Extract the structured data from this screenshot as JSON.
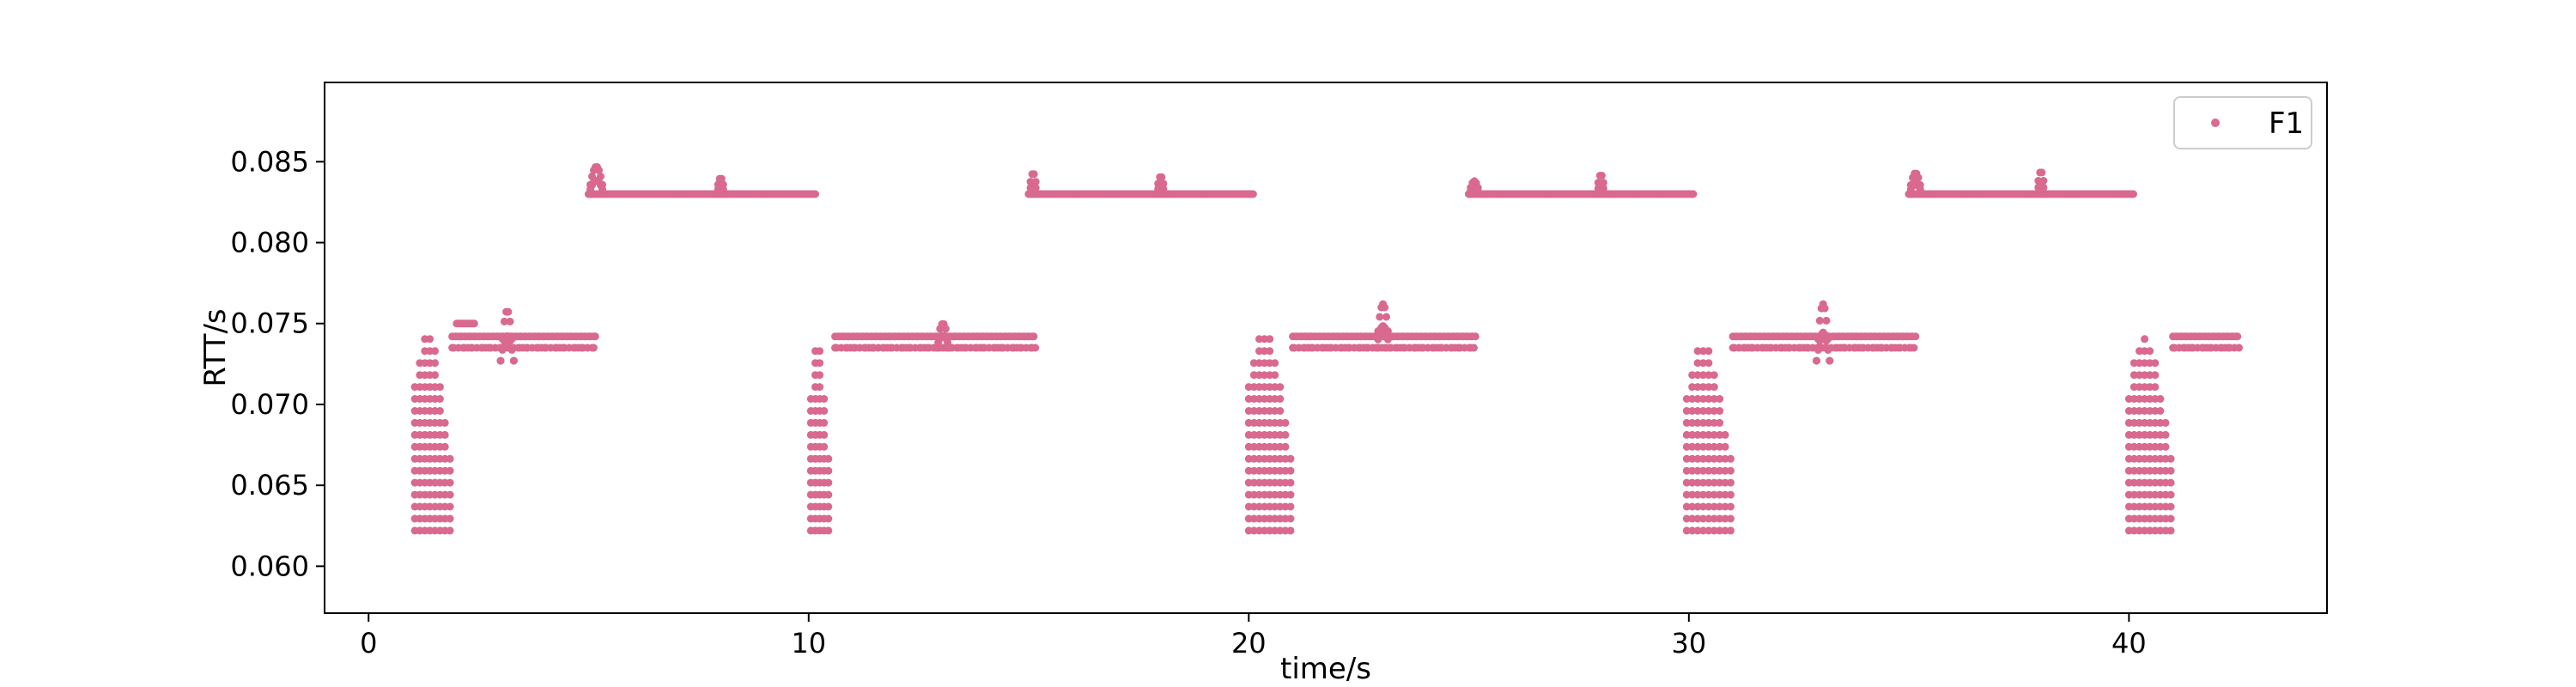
{
  "chart_data": {
    "type": "scatter",
    "title": "",
    "xlabel": "time/s",
    "ylabel": "RTT/s",
    "xlim": [
      -1,
      44.5
    ],
    "ylim": [
      0.0571,
      0.0899
    ],
    "xticks": [
      0,
      10,
      20,
      30,
      40
    ],
    "xtick_labels": [
      "0",
      "10",
      "20",
      "30",
      "40"
    ],
    "yticks": [
      0.06,
      0.065,
      0.07,
      0.075,
      0.08,
      0.085
    ],
    "ytick_labels": [
      "0.060",
      "0.065",
      "0.070",
      "0.075",
      "0.080",
      "0.085"
    ],
    "grid": false,
    "legend_position": "top-right",
    "marker_color": "#d9698f",
    "series": [
      {
        "name": "F1",
        "color": "#d9698f",
        "segments": [
          {
            "x_start": 1.05,
            "x_end": 1.85,
            "kind": "ramp",
            "y_low": 0.0622,
            "y_high": 0.0745
          },
          {
            "x_start": 1.9,
            "x_end": 5.15,
            "kind": "flat",
            "y_low": 0.0735,
            "y_high": 0.0742
          },
          {
            "x_start": 2.0,
            "x_end": 2.4,
            "kind": "flat",
            "y_low": 0.075,
            "y_high": 0.075
          },
          {
            "x_start": 3.0,
            "x_end": 3.3,
            "kind": "bump",
            "y_low": 0.0727,
            "y_high": 0.0758
          },
          {
            "x_start": 5.0,
            "x_end": 10.15,
            "kind": "flat",
            "y_low": 0.083,
            "y_high": 0.083
          },
          {
            "x_start": 5.0,
            "x_end": 5.35,
            "kind": "bump",
            "y_low": 0.083,
            "y_high": 0.0847
          },
          {
            "x_start": 7.9,
            "x_end": 8.1,
            "kind": "bump",
            "y_low": 0.083,
            "y_high": 0.084
          },
          {
            "x_start": 10.05,
            "x_end": 10.45,
            "kind": "ramp",
            "y_low": 0.0622,
            "y_high": 0.0742
          },
          {
            "x_start": 10.6,
            "x_end": 15.15,
            "kind": "flat",
            "y_low": 0.0735,
            "y_high": 0.0742
          },
          {
            "x_start": 12.9,
            "x_end": 13.2,
            "kind": "bump",
            "y_low": 0.0735,
            "y_high": 0.075
          },
          {
            "x_start": 15.0,
            "x_end": 20.1,
            "kind": "flat",
            "y_low": 0.083,
            "y_high": 0.083
          },
          {
            "x_start": 15.0,
            "x_end": 15.2,
            "kind": "bump",
            "y_low": 0.083,
            "y_high": 0.0843
          },
          {
            "x_start": 17.9,
            "x_end": 18.1,
            "kind": "bump",
            "y_low": 0.083,
            "y_high": 0.0841
          },
          {
            "x_start": 20.0,
            "x_end": 20.95,
            "kind": "ramp",
            "y_low": 0.0622,
            "y_high": 0.0745
          },
          {
            "x_start": 21.0,
            "x_end": 25.15,
            "kind": "flat",
            "y_low": 0.0735,
            "y_high": 0.0742
          },
          {
            "x_start": 22.9,
            "x_end": 23.2,
            "kind": "bump",
            "y_low": 0.0735,
            "y_high": 0.0762
          },
          {
            "x_start": 25.0,
            "x_end": 30.1,
            "kind": "flat",
            "y_low": 0.083,
            "y_high": 0.083
          },
          {
            "x_start": 25.0,
            "x_end": 25.25,
            "kind": "bump",
            "y_low": 0.083,
            "y_high": 0.0838
          },
          {
            "x_start": 27.9,
            "x_end": 28.1,
            "kind": "bump",
            "y_low": 0.083,
            "y_high": 0.0842
          },
          {
            "x_start": 29.95,
            "x_end": 30.95,
            "kind": "ramp",
            "y_low": 0.0622,
            "y_high": 0.074
          },
          {
            "x_start": 31.0,
            "x_end": 35.15,
            "kind": "flat",
            "y_low": 0.0735,
            "y_high": 0.0742
          },
          {
            "x_start": 32.9,
            "x_end": 33.2,
            "kind": "bump",
            "y_low": 0.0727,
            "y_high": 0.0762
          },
          {
            "x_start": 35.0,
            "x_end": 40.1,
            "kind": "flat",
            "y_low": 0.083,
            "y_high": 0.083
          },
          {
            "x_start": 35.0,
            "x_end": 35.3,
            "kind": "bump",
            "y_low": 0.083,
            "y_high": 0.0843
          },
          {
            "x_start": 37.9,
            "x_end": 38.1,
            "kind": "bump",
            "y_low": 0.083,
            "y_high": 0.0844
          },
          {
            "x_start": 40.0,
            "x_end": 40.95,
            "kind": "ramp",
            "y_low": 0.0622,
            "y_high": 0.0743
          },
          {
            "x_start": 41.0,
            "x_end": 42.5,
            "kind": "flat",
            "y_low": 0.0735,
            "y_high": 0.0742
          }
        ]
      }
    ]
  }
}
